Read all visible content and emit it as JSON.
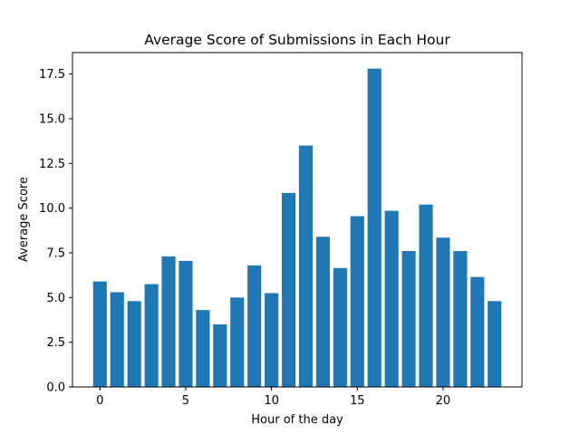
{
  "chart_data": {
    "type": "bar",
    "title": "Average Score of Submissions in Each Hour",
    "xlabel": "Hour of the day",
    "ylabel": "Average Score",
    "x": [
      0,
      1,
      2,
      3,
      4,
      5,
      6,
      7,
      8,
      9,
      10,
      11,
      12,
      13,
      14,
      15,
      16,
      17,
      18,
      19,
      20,
      21,
      22,
      23
    ],
    "values": [
      5.9,
      5.3,
      4.8,
      5.75,
      7.3,
      7.05,
      4.3,
      3.5,
      5.0,
      6.8,
      5.25,
      10.85,
      13.5,
      8.4,
      6.65,
      9.55,
      17.8,
      9.85,
      7.6,
      10.2,
      8.35,
      7.6,
      6.15,
      4.8
    ],
    "xticks": [
      0,
      5,
      10,
      15,
      20
    ],
    "xtick_labels": [
      "0",
      "5",
      "10",
      "15",
      "20"
    ],
    "yticks": [
      0,
      2.5,
      5,
      7.5,
      10,
      12.5,
      15,
      17.5
    ],
    "ytick_labels": [
      "0.0",
      "2.5",
      "5.0",
      "7.5",
      "10.0",
      "12.5",
      "15.0",
      "17.5"
    ],
    "xlim": [
      -1.6,
      24.6
    ],
    "ylim": [
      0,
      18.7
    ],
    "bar_color": "#1f77b4",
    "grid": false
  }
}
